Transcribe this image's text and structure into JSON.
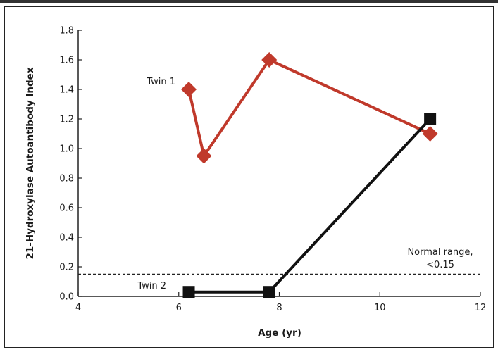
{
  "chart_data": {
    "type": "line",
    "title": "",
    "xlabel": "Age (yr)",
    "ylabel": "21-Hydroxylase Autoantibody Index",
    "xlim": [
      4,
      12
    ],
    "ylim": [
      0,
      1.8
    ],
    "x_ticks": [
      4,
      6,
      8,
      10,
      12
    ],
    "x_tick_labels": [
      "4",
      "6",
      "8",
      "10",
      "12"
    ],
    "y_ticks": [
      0,
      0.2,
      0.4,
      0.6,
      0.8,
      1.0,
      1.2,
      1.4,
      1.6,
      1.8
    ],
    "y_tick_labels": [
      "0.0",
      "0.2",
      "0.4",
      "0.6",
      "0.8",
      "1.0",
      "1.2",
      "1.4",
      "1.6",
      "1.8"
    ],
    "grid": false,
    "series": [
      {
        "name": "Twin 1",
        "color": "#c0392b",
        "marker": "diamond",
        "points": [
          {
            "x": 6.2,
            "y": 1.4
          },
          {
            "x": 6.5,
            "y": 0.95
          },
          {
            "x": 7.8,
            "y": 1.6
          },
          {
            "x": 11.0,
            "y": 1.1
          }
        ]
      },
      {
        "name": "Twin 2",
        "color": "#111111",
        "marker": "square",
        "points": [
          {
            "x": 6.2,
            "y": 0.03
          },
          {
            "x": 7.8,
            "y": 0.03
          },
          {
            "x": 11.0,
            "y": 1.2
          }
        ]
      }
    ],
    "reference_line": {
      "y": 0.15,
      "style": "dashed",
      "label_line1": "Normal range,",
      "label_line2": "<0.15"
    }
  }
}
